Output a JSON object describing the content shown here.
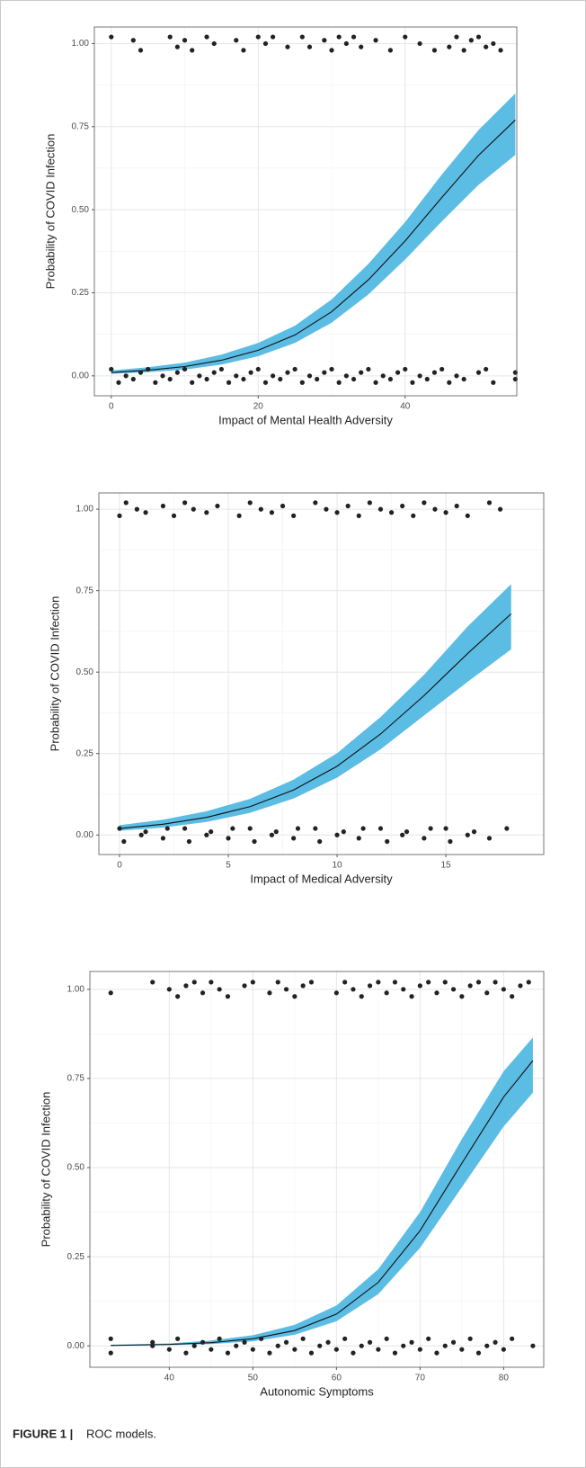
{
  "chart_data": [
    {
      "type": "line",
      "x_label": "Impact of Mental Health Adversity",
      "y_label": "Probability of COVID Infection",
      "x": [
        0,
        5,
        10,
        15,
        20,
        25,
        30,
        35,
        40,
        45,
        50,
        55
      ],
      "fit": [
        0.01,
        0.017,
        0.028,
        0.047,
        0.077,
        0.123,
        0.193,
        0.289,
        0.406,
        0.537,
        0.664,
        0.77
      ],
      "ci_lower": [
        0.006,
        0.011,
        0.019,
        0.034,
        0.059,
        0.099,
        0.16,
        0.245,
        0.35,
        0.465,
        0.575,
        0.665
      ],
      "ci_upper": [
        0.016,
        0.026,
        0.04,
        0.064,
        0.099,
        0.151,
        0.23,
        0.337,
        0.463,
        0.606,
        0.74,
        0.85
      ],
      "points": {
        "x": [
          0,
          3,
          4,
          8,
          9,
          10,
          11,
          13,
          14,
          17,
          18,
          20,
          21,
          22,
          24,
          26,
          27,
          29,
          30,
          31,
          32,
          33,
          34,
          36,
          38,
          40,
          42,
          44,
          46,
          47,
          48,
          49,
          50,
          51,
          52,
          53,
          0,
          1,
          2,
          3,
          4,
          5,
          6,
          7,
          8,
          9,
          10,
          11,
          12,
          13,
          14,
          15,
          16,
          17,
          18,
          19,
          20,
          21,
          22,
          23,
          24,
          25,
          26,
          27,
          28,
          29,
          30,
          31,
          32,
          33,
          34,
          35,
          36,
          37,
          38,
          39,
          40,
          41,
          42,
          43,
          44,
          45,
          46,
          47,
          48,
          50,
          51,
          52,
          55,
          55
        ],
        "y": [
          1.02,
          1.01,
          0.98,
          1.02,
          0.99,
          1.01,
          0.98,
          1.02,
          1.0,
          1.01,
          0.98,
          1.02,
          1.0,
          1.02,
          0.99,
          1.02,
          0.99,
          1.01,
          0.98,
          1.02,
          1.0,
          1.02,
          0.99,
          1.01,
          0.98,
          1.02,
          1.0,
          0.98,
          0.99,
          1.02,
          0.98,
          1.01,
          1.02,
          0.99,
          1.0,
          0.98,
          0.02,
          -0.02,
          0,
          -0.01,
          0.01,
          0.02,
          -0.02,
          0,
          -0.01,
          0.01,
          0.02,
          -0.02,
          0,
          -0.01,
          0.01,
          0.02,
          -0.02,
          0,
          -0.01,
          0.01,
          0.02,
          -0.02,
          0,
          -0.01,
          0.01,
          0.02,
          -0.02,
          0,
          -0.01,
          0.01,
          0.02,
          -0.02,
          0,
          -0.01,
          0.01,
          0.02,
          -0.02,
          0,
          -0.01,
          0.01,
          0.02,
          -0.02,
          0,
          -0.01,
          0.01,
          0.02,
          -0.02,
          0,
          -0.01,
          0.01,
          0.02,
          -0.02,
          0.01,
          -0.01
        ]
      },
      "xlim": [
        -2.3,
        55.2
      ],
      "ylim": [
        -0.06,
        1.05
      ],
      "xticks": [
        0,
        20,
        40
      ],
      "yticks": [
        {
          "value": 0,
          "label": "0.00"
        },
        {
          "value": 0.25,
          "label": "0.25"
        },
        {
          "value": 0.5,
          "label": "0.50"
        },
        {
          "value": 0.75,
          "label": "0.75"
        },
        {
          "value": 1,
          "label": "1.00"
        }
      ],
      "grid": true,
      "ribbon_color": "#5bbce4",
      "line_color": "#111111",
      "point_color": "#222222"
    },
    {
      "type": "line",
      "x_label": "Impact of Medical Adversity",
      "y_label": "Probability of COVID Infection",
      "x": [
        0,
        2,
        4,
        6,
        8,
        10,
        12,
        14,
        16,
        18
      ],
      "fit": [
        0.02,
        0.033,
        0.054,
        0.087,
        0.138,
        0.211,
        0.31,
        0.428,
        0.557,
        0.679
      ],
      "ci_lower": [
        0.013,
        0.023,
        0.04,
        0.068,
        0.112,
        0.176,
        0.263,
        0.367,
        0.47,
        0.57
      ],
      "ci_upper": [
        0.03,
        0.047,
        0.073,
        0.111,
        0.17,
        0.251,
        0.362,
        0.492,
        0.64,
        0.77
      ],
      "points": {
        "x": [
          0,
          0.3,
          0.8,
          1.2,
          2,
          2.5,
          3,
          3.4,
          4,
          4.5,
          5.5,
          6,
          6.5,
          7,
          7.5,
          8,
          9,
          9.5,
          10,
          10.5,
          11,
          11.5,
          12,
          12.5,
          13,
          13.5,
          14,
          14.5,
          15,
          15.5,
          16,
          17,
          17.5,
          0,
          0.2,
          1,
          1.2,
          2,
          2.2,
          3,
          3.2,
          4,
          4.2,
          5,
          5.2,
          6,
          6.2,
          7,
          7.2,
          8,
          8.2,
          9,
          9.2,
          10,
          10.3,
          11,
          11.2,
          12,
          12.3,
          13,
          13.2,
          14,
          14.3,
          15,
          15.2,
          16,
          16.3,
          17,
          17.8
        ],
        "y": [
          0.98,
          1.02,
          1.0,
          0.99,
          1.01,
          0.98,
          1.02,
          1.0,
          0.99,
          1.01,
          0.98,
          1.02,
          1.0,
          0.99,
          1.01,
          0.98,
          1.02,
          1.0,
          0.99,
          1.01,
          0.98,
          1.02,
          1.0,
          0.99,
          1.01,
          0.98,
          1.02,
          1.0,
          0.99,
          1.01,
          0.98,
          1.02,
          1.0,
          0.02,
          -0.02,
          0,
          0.01,
          -0.01,
          0.02,
          0.02,
          -0.02,
          0,
          0.01,
          -0.01,
          0.02,
          0.02,
          -0.02,
          0,
          0.01,
          -0.01,
          0.02,
          0.02,
          -0.02,
          0,
          0.01,
          -0.01,
          0.02,
          0.02,
          -0.02,
          0,
          0.01,
          -0.01,
          0.02,
          0.02,
          -0.02,
          0,
          0.01,
          -0.01,
          0.02
        ]
      },
      "xlim": [
        -0.95,
        19.5
      ],
      "ylim": [
        -0.06,
        1.05
      ],
      "xticks": [
        0,
        5,
        10,
        15
      ],
      "yticks": [
        {
          "value": 0,
          "label": "0.00"
        },
        {
          "value": 0.25,
          "label": "0.25"
        },
        {
          "value": 0.5,
          "label": "0.50"
        },
        {
          "value": 0.75,
          "label": "0.75"
        },
        {
          "value": 1,
          "label": "1.00"
        }
      ],
      "grid": true,
      "ribbon_color": "#5bbce4",
      "line_color": "#111111",
      "point_color": "#222222"
    },
    {
      "type": "line",
      "x_label": "Autonomic Symptoms",
      "y_label": "Probability of COVID Infection",
      "x": [
        33,
        40,
        45,
        50,
        55,
        60,
        65,
        70,
        75,
        80,
        83.5
      ],
      "fit": [
        0.001,
        0.004,
        0.009,
        0.02,
        0.043,
        0.089,
        0.178,
        0.323,
        0.512,
        0.698,
        0.8
      ],
      "ci_lower": [
        0.0,
        0.002,
        0.005,
        0.013,
        0.031,
        0.069,
        0.145,
        0.275,
        0.445,
        0.615,
        0.71
      ],
      "ci_upper": [
        0.003,
        0.007,
        0.015,
        0.03,
        0.059,
        0.113,
        0.215,
        0.375,
        0.58,
        0.77,
        0.865
      ],
      "points": {
        "x": [
          33,
          38,
          40,
          41,
          42,
          43,
          44,
          45,
          46,
          47,
          49,
          50,
          52,
          53,
          54,
          55,
          56,
          57,
          60,
          61,
          62,
          63,
          64,
          65,
          66,
          67,
          68,
          69,
          70,
          71,
          72,
          73,
          74,
          75,
          76,
          77,
          78,
          79,
          80,
          81,
          82,
          83,
          33,
          33,
          38,
          38,
          40,
          41,
          42,
          43,
          44,
          45,
          46,
          47,
          48,
          49,
          50,
          51,
          52,
          53,
          54,
          55,
          56,
          57,
          58,
          59,
          60,
          61,
          62,
          63,
          64,
          65,
          66,
          67,
          68,
          69,
          70,
          71,
          72,
          73,
          74,
          75,
          76,
          77,
          78,
          79,
          80,
          81,
          83.5
        ],
        "y": [
          0.99,
          1.02,
          1.0,
          0.98,
          1.01,
          1.02,
          0.99,
          1.02,
          1.0,
          0.98,
          1.01,
          1.02,
          0.99,
          1.02,
          1.0,
          0.98,
          1.01,
          1.02,
          0.99,
          1.02,
          1.0,
          0.98,
          1.01,
          1.02,
          0.99,
          1.02,
          1.0,
          0.98,
          1.01,
          1.02,
          0.99,
          1.02,
          1.0,
          0.98,
          1.01,
          1.02,
          0.99,
          1.02,
          1.0,
          0.98,
          1.01,
          1.02,
          0.02,
          -0.02,
          0,
          0.01,
          -0.01,
          0.02,
          -0.02,
          0,
          0.01,
          -0.01,
          0.02,
          -0.02,
          0,
          0.01,
          -0.01,
          0.02,
          -0.02,
          0,
          0.01,
          -0.01,
          0.02,
          -0.02,
          0,
          0.01,
          -0.01,
          0.02,
          -0.02,
          0,
          0.01,
          -0.01,
          0.02,
          -0.02,
          0,
          0.01,
          -0.01,
          0.02,
          -0.02,
          0,
          0.01,
          -0.01,
          0.02,
          -0.02,
          0,
          0.01,
          -0.01,
          0.02,
          0
        ]
      },
      "xlim": [
        30.5,
        84.8
      ],
      "ylim": [
        -0.06,
        1.05
      ],
      "xticks": [
        40,
        50,
        60,
        70,
        80
      ],
      "yticks": [
        {
          "value": 0,
          "label": "0.00"
        },
        {
          "value": 0.25,
          "label": "0.25"
        },
        {
          "value": 0.5,
          "label": "0.50"
        },
        {
          "value": 0.75,
          "label": "0.75"
        },
        {
          "value": 1,
          "label": "1.00"
        }
      ],
      "grid": true,
      "ribbon_color": "#5bbce4",
      "line_color": "#111111",
      "point_color": "#222222"
    }
  ],
  "caption": {
    "label": "FIGURE 1 |",
    "text": "ROC models."
  }
}
